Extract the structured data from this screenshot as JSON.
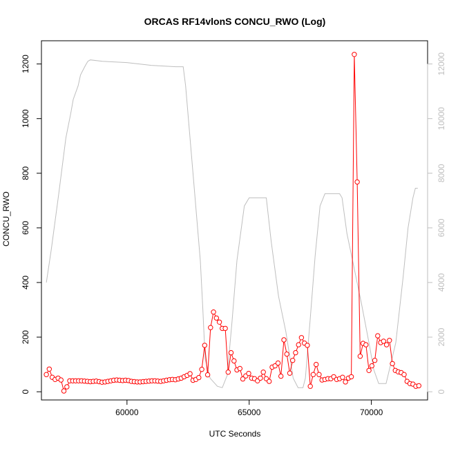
{
  "chart_data": {
    "type": "line",
    "title": "ORCAS RF14vlonS CONCU_RWO (Log)",
    "xlabel": "UTC Seconds",
    "ylabel": "CONCU_RWO",
    "xlim": [
      56500,
      72300
    ],
    "ylim": [
      -30,
      1285
    ],
    "y2lim": [
      -300,
      12850
    ],
    "log_scale": false,
    "grid": false,
    "colors": {
      "primary": "#ff0000",
      "secondary": "#bebebe",
      "axis": "#000000",
      "secondary_axis": "#bebebe"
    },
    "x_ticks": [
      {
        "value": 60000,
        "label": "60000"
      },
      {
        "value": 65000,
        "label": "65000"
      },
      {
        "value": 70000,
        "label": "70000"
      }
    ],
    "y_ticks": [
      {
        "value": 0,
        "label": "0"
      },
      {
        "value": 200,
        "label": "200"
      },
      {
        "value": 400,
        "label": "400"
      },
      {
        "value": 600,
        "label": "600"
      },
      {
        "value": 800,
        "label": "800"
      },
      {
        "value": 1000,
        "label": "1000"
      },
      {
        "value": 1200,
        "label": "1200"
      }
    ],
    "y2_ticks": [
      {
        "value": 0,
        "label": "0"
      },
      {
        "value": 2000,
        "label": "2000"
      },
      {
        "value": 4000,
        "label": "4000"
      },
      {
        "value": 6000,
        "label": "6000"
      },
      {
        "value": 8000,
        "label": "8000"
      },
      {
        "value": 10000,
        "label": "10000"
      },
      {
        "value": 12000,
        "label": "12000"
      }
    ],
    "series": [
      {
        "axis": "left",
        "style": "line+points",
        "x": [
          56700,
          56820,
          56940,
          57060,
          57180,
          57300,
          57420,
          57540,
          57660,
          57780,
          57900,
          58020,
          58140,
          58260,
          58380,
          58500,
          58620,
          58740,
          58860,
          58980,
          59100,
          59220,
          59340,
          59460,
          59580,
          59700,
          59820,
          59940,
          60060,
          60180,
          60300,
          60420,
          60540,
          60660,
          60780,
          60900,
          61020,
          61140,
          61260,
          61380,
          61500,
          61620,
          61740,
          61860,
          61980,
          62100,
          62220,
          62340,
          62460,
          62580,
          62700,
          62820,
          62940,
          63060,
          63180,
          63300,
          63420,
          63540,
          63660,
          63780,
          63900,
          64020,
          64140,
          64260,
          64380,
          64500,
          64620,
          64740,
          64860,
          64980,
          65100,
          65220,
          65340,
          65460,
          65580,
          65700,
          65820,
          65940,
          66060,
          66180,
          66300,
          66420,
          66540,
          66660,
          66780,
          66900,
          67020,
          67140,
          67260,
          67380,
          67500,
          67620,
          67740,
          67860,
          67980,
          68100,
          68220,
          68340,
          68460,
          68580,
          68700,
          68820,
          68940,
          69060,
          69180,
          69300,
          69420,
          69540,
          69660,
          69780,
          69900,
          70020,
          70140,
          70260,
          70380,
          70500,
          70620,
          70740,
          70860,
          70980,
          71100,
          71220,
          71340,
          71460,
          71580,
          71700,
          71820,
          71940
        ],
        "y": [
          63,
          83,
          53,
          45,
          50,
          43,
          3,
          18,
          40,
          40,
          40,
          40,
          40,
          39,
          38,
          37,
          38,
          39,
          37,
          35,
          36,
          38,
          40,
          42,
          43,
          42,
          41,
          42,
          41,
          38,
          37,
          36,
          36,
          37,
          38,
          39,
          40,
          40,
          39,
          38,
          40,
          42,
          44,
          45,
          44,
          47,
          50,
          55,
          60,
          66,
          42,
          45,
          52,
          82,
          170,
          62,
          235,
          292,
          270,
          255,
          232,
          232,
          72,
          143,
          113,
          80,
          85,
          47,
          58,
          67,
          50,
          48,
          40,
          50,
          72,
          48,
          38,
          90,
          95,
          105,
          57,
          190,
          138,
          68,
          115,
          143,
          172,
          198,
          178,
          170,
          20,
          63,
          100,
          63,
          43,
          45,
          48,
          48,
          55,
          45,
          48,
          53,
          36,
          50,
          55,
          1235,
          768,
          130,
          177,
          172,
          78,
          95,
          115,
          205,
          180,
          185,
          172,
          188,
          103,
          78,
          73,
          70,
          63,
          38,
          30,
          28,
          20,
          22
        ]
      },
      {
        "axis": "right",
        "style": "line",
        "x": [
          56700,
          56900,
          57200,
          57500,
          57700,
          57800,
          58000,
          58100,
          58300,
          58400,
          58500,
          59000,
          60000,
          61000,
          62000,
          62300,
          62400,
          62700,
          63000,
          63100,
          63200,
          63400,
          63700,
          63900,
          64100,
          64300,
          64500,
          64800,
          65000,
          65100,
          65300,
          65500,
          65700,
          65900,
          66200,
          66500,
          66800,
          67000,
          67100,
          67200,
          67300,
          67500,
          67700,
          67900,
          68100,
          68200,
          68400,
          68700,
          68800,
          69000,
          69300,
          69600,
          69900,
          70100,
          70300,
          70600,
          71000,
          71300,
          71500,
          71700,
          71800,
          71900
        ],
        "y": [
          4000,
          5200,
          7200,
          9300,
          10200,
          10700,
          11200,
          11600,
          11950,
          12100,
          12150,
          12100,
          12050,
          11950,
          11900,
          11900,
          11200,
          8000,
          4800,
          3100,
          1200,
          500,
          200,
          150,
          600,
          2600,
          4800,
          6800,
          7100,
          7100,
          7100,
          7100,
          7100,
          5500,
          3500,
          2200,
          500,
          150,
          150,
          150,
          500,
          2700,
          5000,
          6800,
          7250,
          7250,
          7250,
          7250,
          7100,
          5800,
          4500,
          3200,
          1800,
          800,
          300,
          300,
          1800,
          4200,
          6000,
          7100,
          7450,
          7450
        ]
      }
    ]
  }
}
